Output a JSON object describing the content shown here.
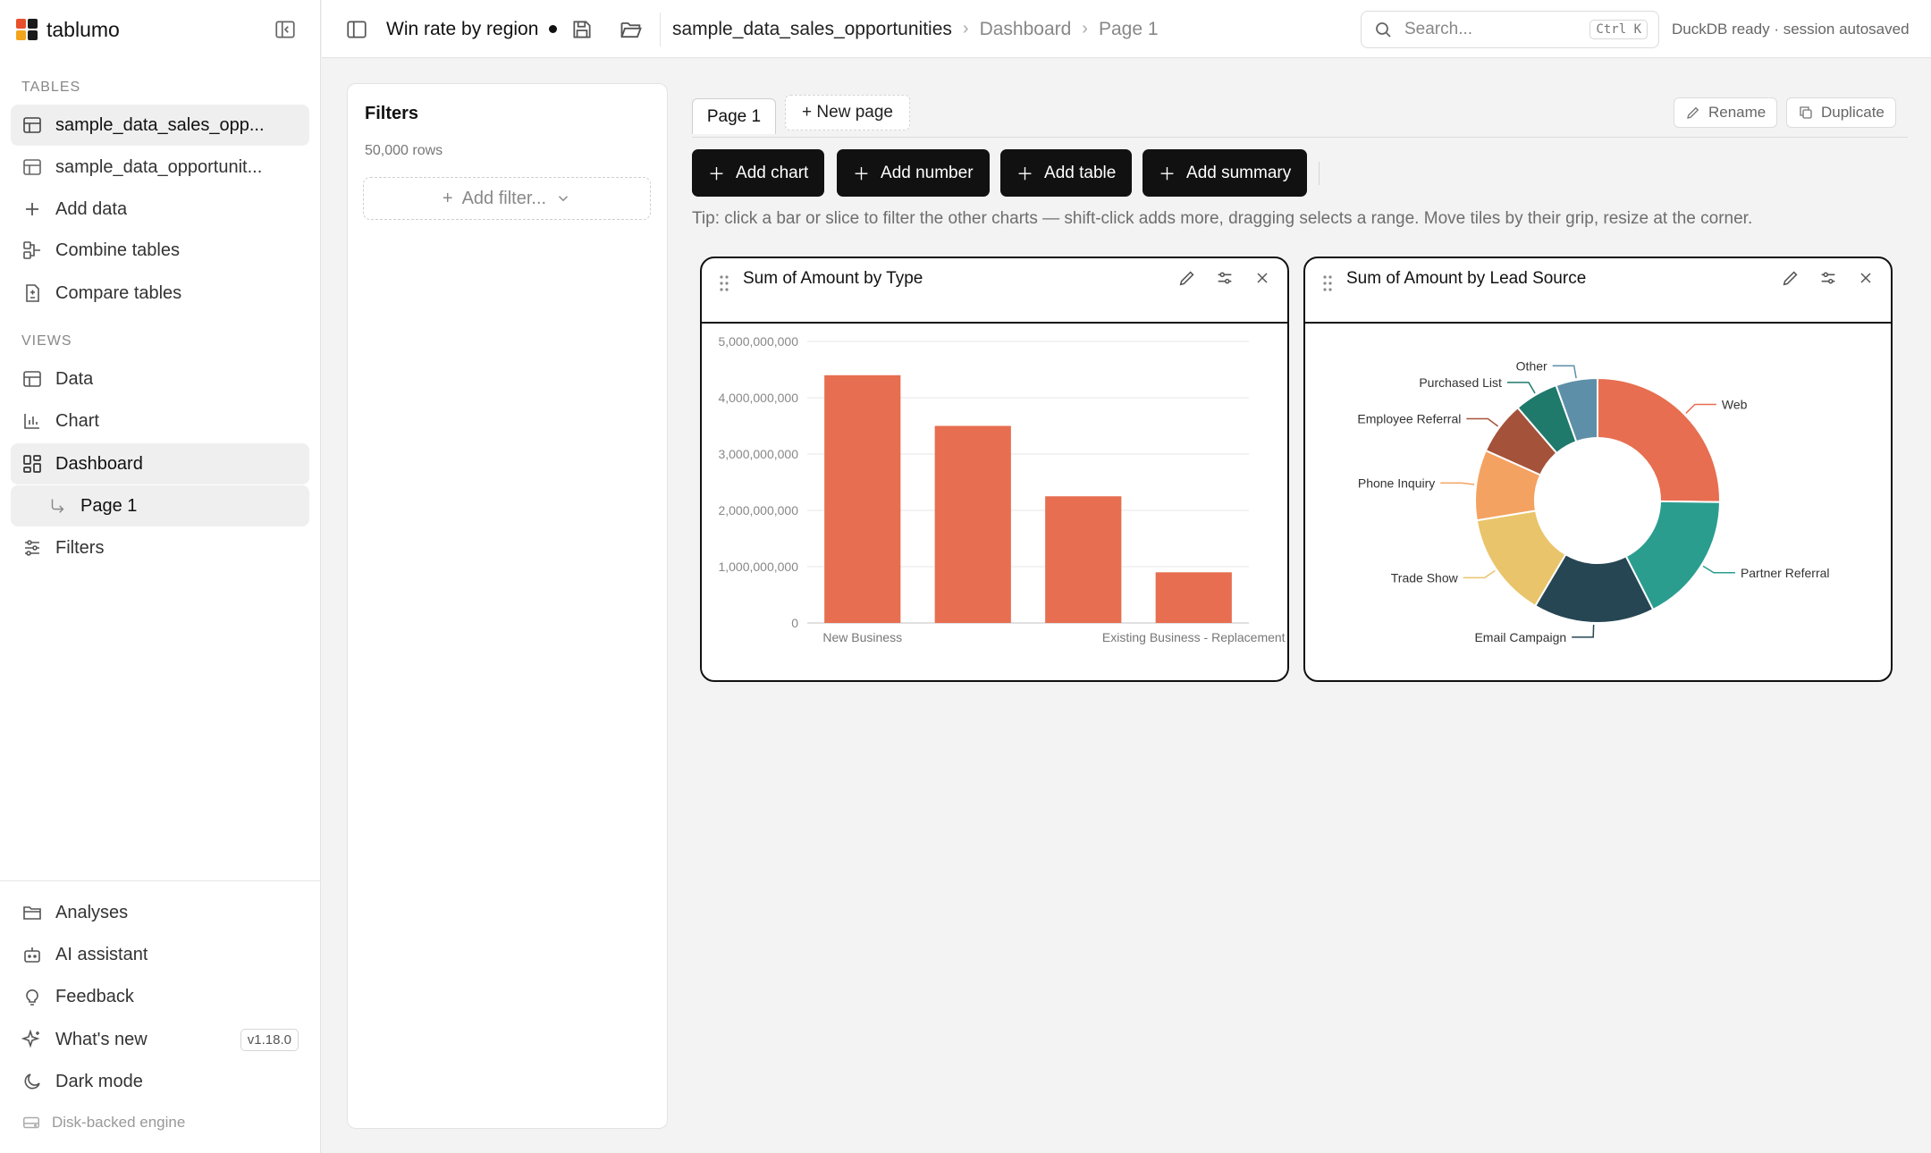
{
  "app": {
    "name": "tablumo",
    "logo_colors": [
      "#e8502b",
      "#1a1a1a",
      "#f2a51c",
      "#1a1a1a"
    ]
  },
  "sidebar": {
    "tables_header": "TABLES",
    "tables": [
      {
        "label": "sample_data_sales_opp...",
        "active": true
      },
      {
        "label": "sample_data_opportunit...",
        "active": false
      }
    ],
    "table_actions": [
      {
        "label": "Add data",
        "icon": "plus-icon"
      },
      {
        "label": "Combine tables",
        "icon": "combine-icon"
      },
      {
        "label": "Compare tables",
        "icon": "compare-icon"
      }
    ],
    "views_header": "VIEWS",
    "views": [
      {
        "label": "Data",
        "icon": "table-icon"
      },
      {
        "label": "Chart",
        "icon": "bar-chart-icon"
      },
      {
        "label": "Dashboard",
        "icon": "dashboard-icon",
        "active": true
      },
      {
        "label": "Page 1",
        "icon": "sub-arrow-icon",
        "sub": true
      },
      {
        "label": "Filters",
        "icon": "sliders-icon"
      }
    ],
    "footer": [
      {
        "label": "Analyses",
        "icon": "folder-icon"
      },
      {
        "label": "AI assistant",
        "icon": "bot-icon"
      },
      {
        "label": "Feedback",
        "icon": "bulb-icon"
      },
      {
        "label": "What's new",
        "icon": "sparkle-icon",
        "badge": "v1.18.0"
      },
      {
        "label": "Dark mode",
        "icon": "moon-icon"
      }
    ],
    "engine_label": "Disk-backed engine"
  },
  "topbar": {
    "doc_title": "Win rate by region",
    "breadcrumb": [
      "sample_data_sales_opportunities",
      "Dashboard",
      "Page 1"
    ],
    "search_placeholder": "Search...",
    "search_shortcut": "Ctrl K",
    "status": "DuckDB ready · session autosaved"
  },
  "filters_panel": {
    "title": "Filters",
    "row_count": "50,000 rows",
    "add_filter_label": "Add filter..."
  },
  "pages": {
    "active_tab": "Page 1",
    "new_page_label": "+ New page",
    "rename_label": "Rename",
    "duplicate_label": "Duplicate"
  },
  "toolbar": {
    "buttons": [
      "Add chart",
      "Add number",
      "Add table",
      "Add summary"
    ],
    "tip": "Tip: click a bar or slice to filter the other charts — shift-click adds more, dragging selects a range. Move tiles by their grip, resize at the corner."
  },
  "tiles": [
    {
      "title": "Sum of Amount by Type"
    },
    {
      "title": "Sum of Amount by Lead Source"
    }
  ],
  "chart_data": [
    {
      "type": "bar",
      "title": "Sum of Amount by Type",
      "categories": [
        "New Business",
        "",
        "",
        "Existing Business - Replacement"
      ],
      "values": [
        4400000000,
        3500000000,
        2250000000,
        900000000
      ],
      "y_ticks": [
        "0",
        "1,000,000,000",
        "2,000,000,000",
        "3,000,000,000",
        "4,000,000,000",
        "5,000,000,000"
      ],
      "ylim": [
        0,
        5000000000
      ],
      "grid": true,
      "color": "#e76e50"
    },
    {
      "type": "pie",
      "donut": true,
      "title": "Sum of Amount by Lead Source",
      "labels": [
        "Web",
        "Partner Referral",
        "Email Campaign",
        "Trade Show",
        "Phone Inquiry",
        "Employee Referral",
        "Purchased List",
        "Other"
      ],
      "values": [
        25.2,
        17.3,
        16.0,
        13.9,
        9.3,
        7.0,
        5.8,
        5.5
      ],
      "colors": [
        "#e76e50",
        "#2a9d8f",
        "#264653",
        "#e9c46a",
        "#f4a261",
        "#a5523a",
        "#1f7a6b",
        "#5e8fa8"
      ]
    }
  ]
}
